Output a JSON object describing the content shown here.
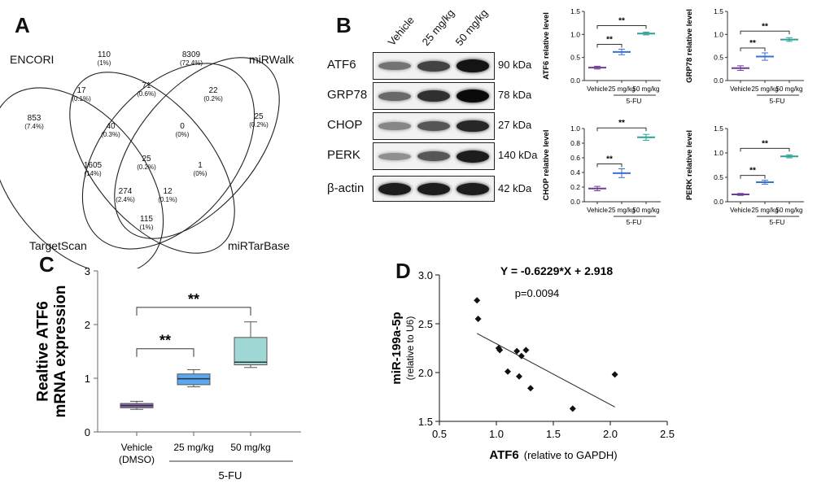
{
  "panels": {
    "a": "A",
    "b": "B",
    "c": "C",
    "d": "D"
  },
  "venn": {
    "sets": [
      "ENCORI",
      "miRWalk",
      "TargetScan",
      "miRTarBase"
    ],
    "regions": [
      {
        "n": "110",
        "p": "(1%)"
      },
      {
        "n": "8309",
        "p": "(72.4%)"
      },
      {
        "n": "853",
        "p": "(7.4%)"
      },
      {
        "n": "17",
        "p": "(0.1%)"
      },
      {
        "n": "71",
        "p": "(0.6%)"
      },
      {
        "n": "22",
        "p": "(0.2%)"
      },
      {
        "n": "25",
        "p": "(0.2%)"
      },
      {
        "n": "40",
        "p": "(0.3%)"
      },
      {
        "n": "0",
        "p": "(0%)"
      },
      {
        "n": "1605",
        "p": "(14%)"
      },
      {
        "n": "25",
        "p": "(0.2%)"
      },
      {
        "n": "1",
        "p": "(0%)"
      },
      {
        "n": "274",
        "p": "(2.4%)"
      },
      {
        "n": "12",
        "p": "(0.1%)"
      },
      {
        "n": "115",
        "p": "(1%)"
      }
    ]
  },
  "blot": {
    "columns": [
      "Vehicle",
      "25 mg/kg",
      "50 mg/kg"
    ],
    "rows": [
      {
        "label": "ATF6",
        "kda": "90 kDa",
        "intensity": [
          0.45,
          0.7,
          0.95
        ]
      },
      {
        "label": "GRP78",
        "kda": "78 kDa",
        "intensity": [
          0.5,
          0.8,
          1.0
        ]
      },
      {
        "label": "CHOP",
        "kda": "27 kDa",
        "intensity": [
          0.35,
          0.6,
          0.85
        ]
      },
      {
        "label": "PERK",
        "kda": "140 kDa",
        "intensity": [
          0.3,
          0.6,
          0.9
        ]
      },
      {
        "label": "β-actin",
        "kda": "42 kDa",
        "intensity": [
          0.9,
          0.9,
          0.9
        ]
      }
    ]
  },
  "chart_data": [
    {
      "type": "scatter",
      "ylabel": "ATF6 relative level",
      "categories": [
        "Vehicle",
        "25 mg/kg",
        "50 mg/kg"
      ],
      "group_label": "5-FU",
      "values": [
        0.28,
        0.62,
        1.02
      ],
      "errors": [
        0.03,
        0.06,
        0.03
      ],
      "ylim": [
        0,
        1.5
      ],
      "yticks": [
        "0.0",
        "0.5",
        "1.0",
        "1.5"
      ],
      "significance": [
        "**",
        "**"
      ],
      "colors": [
        "#6a3d9a",
        "#3b6fd8",
        "#2aa198"
      ]
    },
    {
      "type": "scatter",
      "ylabel": "GRP78 relative level",
      "categories": [
        "Vehicle",
        "25 mg/kg",
        "50 mg/kg"
      ],
      "group_label": "5-FU",
      "values": [
        0.27,
        0.52,
        0.89
      ],
      "errors": [
        0.05,
        0.08,
        0.04
      ],
      "ylim": [
        0,
        1.5
      ],
      "yticks": [
        "0.0",
        "0.5",
        "1.0",
        "1.5"
      ],
      "significance": [
        "**",
        "**"
      ],
      "colors": [
        "#6a3d9a",
        "#3b6fd8",
        "#2aa198"
      ]
    },
    {
      "type": "scatter",
      "ylabel": "CHOP relative level",
      "categories": [
        "Vehicle",
        "25 mg/kg",
        "50 mg/kg"
      ],
      "group_label": "5-FU",
      "values": [
        0.18,
        0.39,
        0.88
      ],
      "errors": [
        0.03,
        0.06,
        0.04
      ],
      "ylim": [
        0,
        1.0
      ],
      "yticks": [
        "0.0",
        "0.2",
        "0.4",
        "0.6",
        "0.8",
        "1.0"
      ],
      "significance": [
        "**",
        "**"
      ],
      "colors": [
        "#6a3d9a",
        "#3b6fd8",
        "#2aa198"
      ]
    },
    {
      "type": "scatter",
      "ylabel": "PERK relative level",
      "categories": [
        "Vehicle",
        "25 mg/kg",
        "50 mg/kg"
      ],
      "group_label": "5-FU",
      "values": [
        0.15,
        0.4,
        0.93
      ],
      "errors": [
        0.02,
        0.04,
        0.03
      ],
      "ylim": [
        0,
        1.5
      ],
      "yticks": [
        "0.0",
        "0.5",
        "1.0",
        "1.5"
      ],
      "significance": [
        "**",
        "**"
      ],
      "colors": [
        "#6a3d9a",
        "#3b6fd8",
        "#2aa198"
      ]
    },
    {
      "type": "box",
      "ylabel": "Realtive ATF6 mRNA expression",
      "categories": [
        "Vehicle (DMSO)",
        "25 mg/kg",
        "50 mg/kg"
      ],
      "group_label": "5-FU",
      "boxes": [
        {
          "min": 0.42,
          "q1": 0.45,
          "median": 0.49,
          "q3": 0.53,
          "max": 0.57
        },
        {
          "min": 0.84,
          "q1": 0.88,
          "median": 0.99,
          "q3": 1.08,
          "max": 1.16
        },
        {
          "min": 1.2,
          "q1": 1.25,
          "median": 1.3,
          "q3": 1.76,
          "max": 2.05
        }
      ],
      "ylim": [
        0,
        3
      ],
      "yticks": [
        "0",
        "1",
        "2",
        "3"
      ],
      "significance": [
        "**",
        "**"
      ],
      "colors": [
        "#8e6bb5",
        "#58a9f2",
        "#9fd7d4"
      ]
    },
    {
      "type": "scatter",
      "title": "Y = -0.6229*X + 2.918",
      "subtitle": "p=0.0094",
      "xlabel": "ATF6",
      "xlabel_unit": "(relative to GAPDH)",
      "ylabel": "miR-199a-5p",
      "ylabel_unit": "(relative to U6)",
      "xlim": [
        0.5,
        2.5
      ],
      "ylim": [
        1.5,
        3.0
      ],
      "xticks": [
        "0.5",
        "1.0",
        "1.5",
        "2.0",
        "2.5"
      ],
      "yticks": [
        "1.5",
        "2.0",
        "2.5",
        "3.0"
      ],
      "x": [
        0.83,
        0.84,
        1.02,
        1.03,
        1.1,
        1.18,
        1.2,
        1.22,
        1.26,
        1.3,
        1.67,
        2.04
      ],
      "y": [
        2.74,
        2.55,
        2.25,
        2.23,
        2.01,
        2.22,
        1.96,
        2.17,
        2.23,
        1.84,
        1.63,
        1.98
      ],
      "fit": {
        "slope": -0.6229,
        "intercept": 2.918,
        "x_range": [
          0.83,
          2.04
        ]
      }
    }
  ]
}
